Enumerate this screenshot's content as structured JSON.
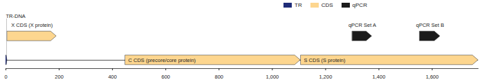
{
  "chart_data": {
    "type": "feature_map",
    "legend": "top",
    "xlim": [
      0,
      1775
    ],
    "xticks": [
      0,
      200,
      400,
      600,
      800,
      {
        "value": 1000,
        "label": "1,000"
      },
      {
        "value": 1200,
        "label": "1,200"
      },
      {
        "value": 1400,
        "label": "1,400"
      },
      {
        "value": 1600,
        "label": "1,600"
      }
    ],
    "series": [
      {
        "name": "TR",
        "color": "#1f2c78",
        "features": [
          {
            "label": "TR-DNA",
            "start": 0,
            "end": 5
          }
        ]
      },
      {
        "name": "CDS",
        "color": "#fdd68f",
        "features": [
          {
            "label": "X CDS (X protein)",
            "start": 6,
            "end": 190
          },
          {
            "label": "C CDS (precore/core protein)",
            "start": 449,
            "end": 1106
          },
          {
            "label": "S CDS (S protein)",
            "start": 1108,
            "end": 1773
          }
        ]
      },
      {
        "name": "qPCR",
        "color": "#1b1b1b",
        "features": [
          {
            "label": "qPCR Set A",
            "start": 1301,
            "end": 1374
          },
          {
            "label": "qPCR Set B",
            "start": 1554,
            "end": 1630
          }
        ]
      }
    ]
  }
}
